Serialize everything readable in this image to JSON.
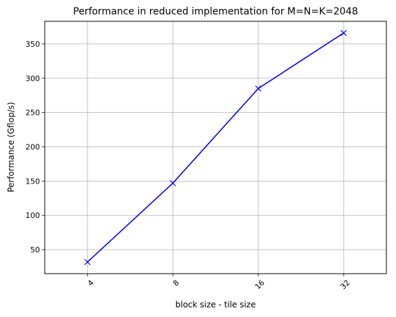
{
  "chart_data": {
    "type": "line",
    "title": "Performance in reduced implementation for M=N=K=2048",
    "xlabel": "block size - tile size",
    "ylabel": "Performance (Gflop/s)",
    "categories": [
      "4",
      "8",
      "16",
      "32"
    ],
    "x_tick_rotation_deg": 45,
    "series": [
      {
        "values": [
          32,
          147,
          285,
          366
        ],
        "color": "#0000ff",
        "marker": "x"
      }
    ],
    "y_ticks": [
      50,
      100,
      150,
      200,
      250,
      300,
      350
    ],
    "ylim": [
      15,
      383
    ],
    "grid": true
  }
}
